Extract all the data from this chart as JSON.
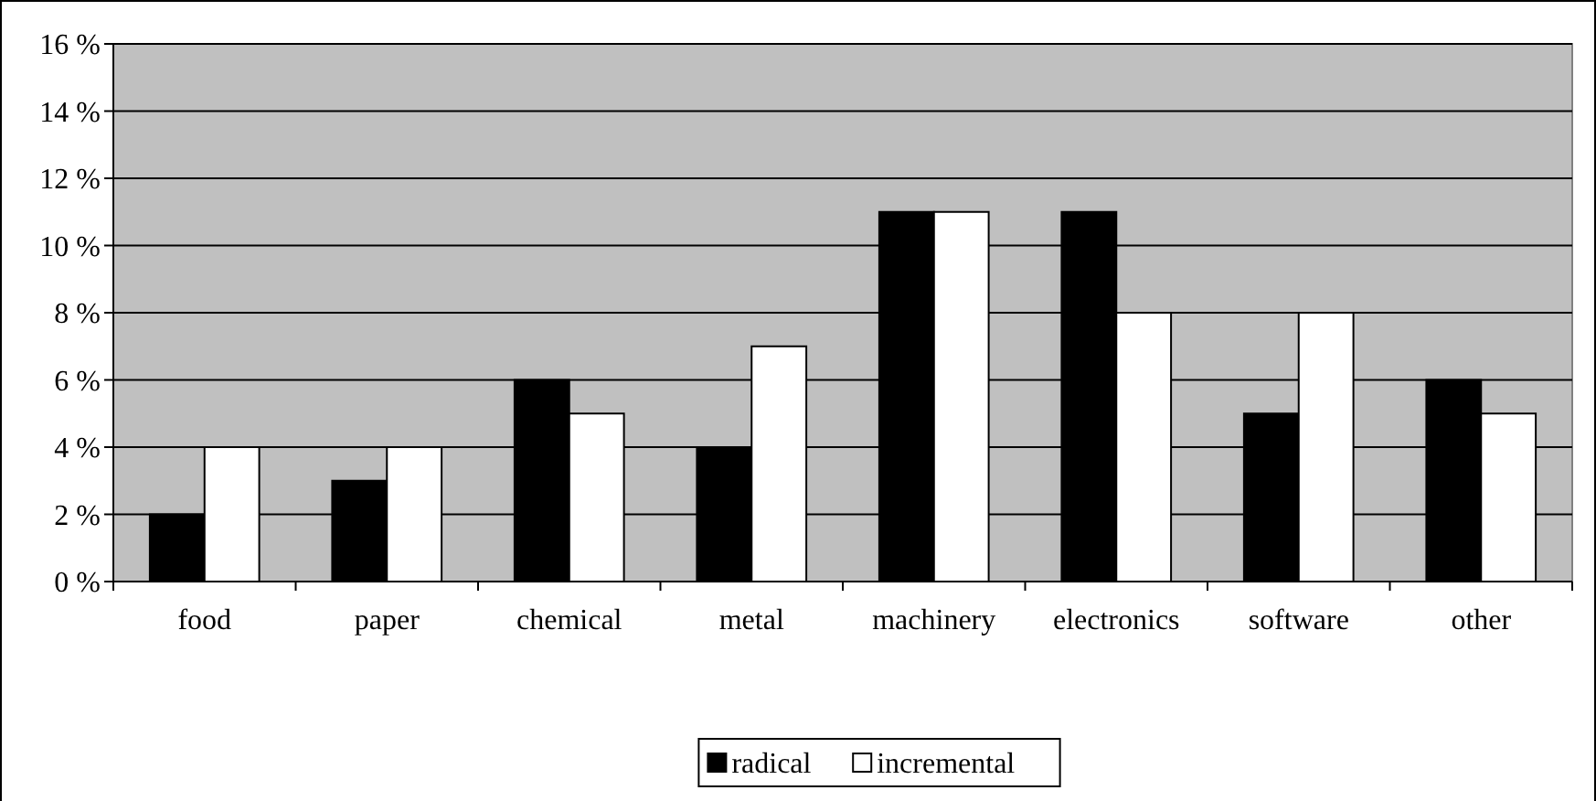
{
  "chart_data": {
    "type": "bar",
    "categories": [
      "food",
      "paper",
      "chemical",
      "metal",
      "machinery",
      "electronics",
      "software",
      "other"
    ],
    "series": [
      {
        "name": "radical",
        "color": "#000000",
        "values": [
          2,
          3,
          6,
          4,
          11,
          11,
          5,
          6
        ]
      },
      {
        "name": "incremental",
        "color": "#ffffff",
        "values": [
          4,
          4,
          5,
          7,
          11,
          8,
          8,
          5
        ]
      }
    ],
    "ylim": [
      0,
      16
    ],
    "yticks": [
      {
        "value": 0,
        "label": "0 %"
      },
      {
        "value": 2,
        "label": "2 %"
      },
      {
        "value": 4,
        "label": "4 %"
      },
      {
        "value": 6,
        "label": "6 %"
      },
      {
        "value": 8,
        "label": "8 %"
      },
      {
        "value": 10,
        "label": "10 %"
      },
      {
        "value": 12,
        "label": "12 %"
      },
      {
        "value": 14,
        "label": "14 %"
      },
      {
        "value": 16,
        "label": "16 %"
      }
    ],
    "grid": "y",
    "legend": "bottom"
  }
}
